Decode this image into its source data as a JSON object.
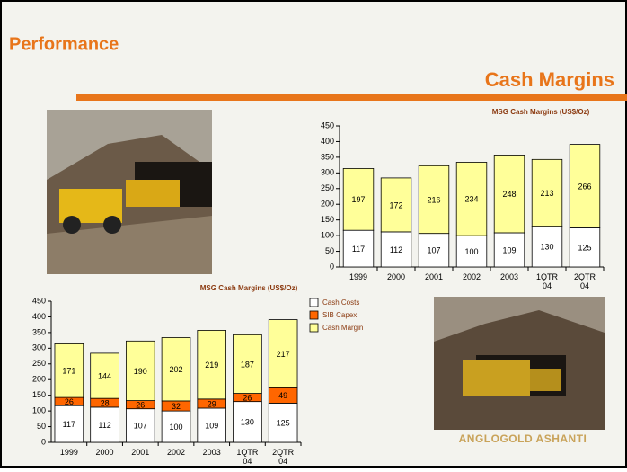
{
  "slide": {
    "section": "Performance",
    "heading": "Cash Margins",
    "logo": "AngloGold Ashanti"
  },
  "chart_data": [
    {
      "type": "bar",
      "stacked": true,
      "title": "MSG Cash Margins (US$/Oz)",
      "categories": [
        "1999",
        "2000",
        "2001",
        "2002",
        "2003",
        "1QTR 04",
        "2QTR 04"
      ],
      "series": [
        {
          "color": "#ffffff",
          "values": [
            117,
            112,
            107,
            100,
            109,
            130,
            125
          ]
        },
        {
          "color": "#ffff99",
          "values": [
            197,
            172,
            216,
            234,
            248,
            213,
            266
          ]
        }
      ],
      "ylim": [
        0,
        450
      ],
      "yticks": [
        0,
        50,
        100,
        150,
        200,
        250,
        300,
        350,
        400,
        450
      ],
      "legend": false
    },
    {
      "type": "bar",
      "stacked": true,
      "title": "MSG Cash Margins (US$/Oz)",
      "categories": [
        "1999",
        "2000",
        "2001",
        "2002",
        "2003",
        "1QTR 04",
        "2QTR 04"
      ],
      "series": [
        {
          "name": "Cash Costs",
          "color": "#ffffff",
          "values": [
            117,
            112,
            107,
            100,
            109,
            130,
            125
          ]
        },
        {
          "name": "SIB Capex",
          "color": "#ff6600",
          "values": [
            26,
            28,
            26,
            32,
            29,
            26,
            49
          ]
        },
        {
          "name": "Cash Margin",
          "color": "#ffff99",
          "values": [
            171,
            144,
            190,
            202,
            219,
            187,
            217
          ]
        }
      ],
      "ylim": [
        0,
        450
      ],
      "yticks": [
        0,
        50,
        100,
        150,
        200,
        250,
        300,
        350,
        400,
        450
      ],
      "legend": "right"
    }
  ]
}
